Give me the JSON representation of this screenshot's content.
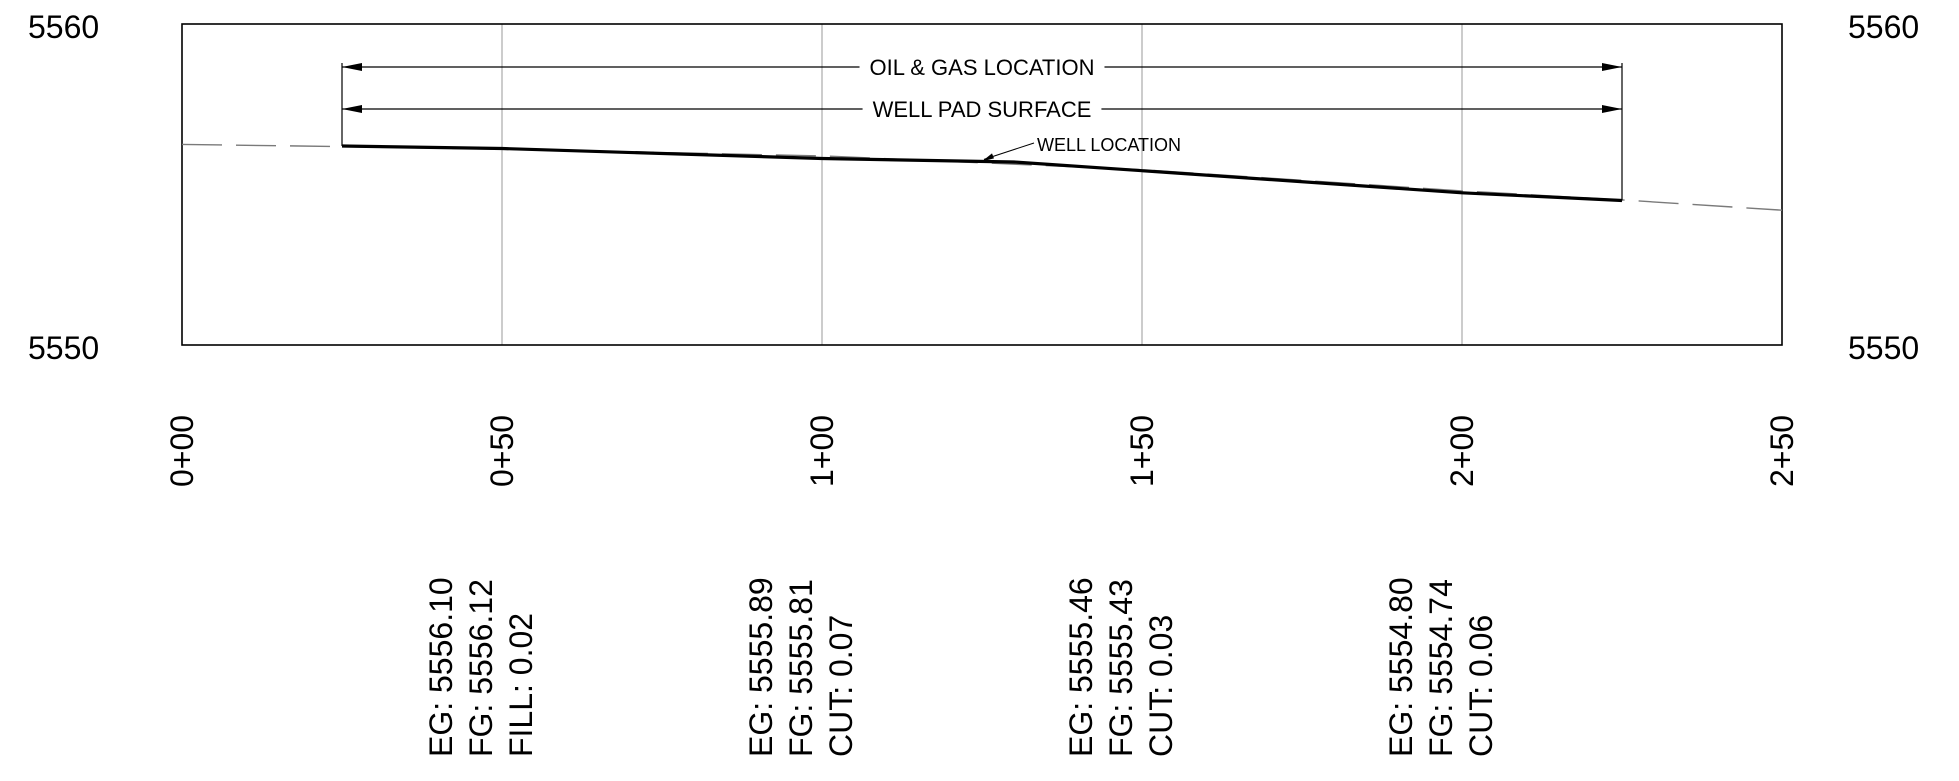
{
  "colors": {
    "ink": "#000000",
    "grid": "#9a9a9a",
    "existing_ground": "#7a7a7a",
    "background": "#ffffff"
  },
  "elevation_labels": {
    "left_top": "5560",
    "left_bottom": "5550",
    "right_top": "5560",
    "right_bottom": "5550"
  },
  "station_labels": [
    "0+00",
    "0+50",
    "1+00",
    "1+50",
    "2+00",
    "2+50"
  ],
  "dimensions": {
    "oil_gas_location": "OIL & GAS LOCATION",
    "well_pad_surface": "WELL PAD SURFACE"
  },
  "callout": {
    "well_location": "WELL LOCATION"
  },
  "station_data": [
    {
      "eg": "EG: 5556.10",
      "fg": "FG: 5556.12",
      "cutfill": "FILL:  0.02"
    },
    {
      "eg": "EG: 5555.89",
      "fg": "FG: 5555.81",
      "cutfill": "CUT:  0.07"
    },
    {
      "eg": "EG: 5555.46",
      "fg": "FG: 5555.43",
      "cutfill": "CUT:  0.03"
    },
    {
      "eg": "EG: 5554.80",
      "fg": "FG: 5554.74",
      "cutfill": "CUT:  0.06"
    }
  ],
  "chart_data": {
    "type": "line",
    "x_unit": "station (ft)",
    "y_unit": "elevation (ft)",
    "xlim": [
      0,
      250
    ],
    "ylim": [
      5550,
      5560
    ],
    "x_ticks": [
      0,
      50,
      100,
      150,
      200,
      250
    ],
    "grid": true,
    "series": [
      {
        "style": "dashed",
        "x": [
          0,
          25,
          50,
          100,
          150,
          200,
          225,
          250
        ],
        "y": [
          5556.25,
          5556.18,
          5556.1,
          5555.89,
          5555.46,
          5554.8,
          5554.52,
          5554.2
        ]
      },
      {
        "style": "solid-heavy",
        "x": [
          25,
          50,
          100,
          130,
          150,
          200,
          225
        ],
        "y": [
          5556.2,
          5556.12,
          5555.81,
          5555.7,
          5555.43,
          5554.74,
          5554.5
        ]
      }
    ],
    "annotations": [
      {
        "text_key": "dimensions.oil_gas_location",
        "x_start": 25,
        "x_end": 225
      },
      {
        "text_key": "dimensions.well_pad_surface",
        "x_start": 25,
        "x_end": 225
      },
      {
        "text_key": "callout.well_location",
        "x": 125
      }
    ]
  }
}
